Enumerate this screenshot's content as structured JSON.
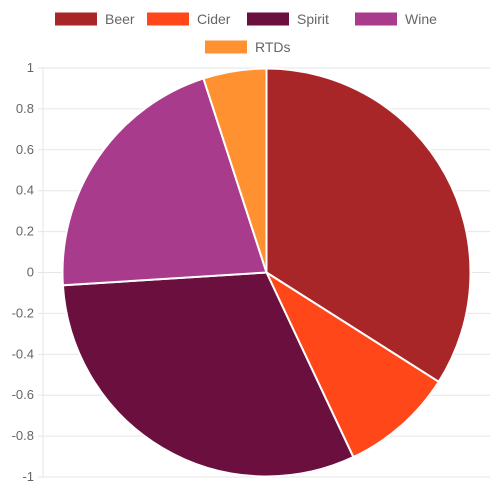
{
  "chart_data": {
    "type": "pie",
    "labels": [
      "Beer",
      "Cider",
      "Spirit",
      "Wine",
      "RTDs"
    ],
    "values": [
      34,
      9,
      31,
      21,
      5
    ],
    "colors": [
      "#a82528",
      "#ff471a",
      "#6b0f3f",
      "#a93b8c",
      "#ff9130"
    ],
    "legend_position": "top",
    "y_axis": {
      "ticks": [
        "1",
        "0.8",
        "0.6",
        "0.4",
        "0.2",
        "0",
        "-0.2",
        "-0.4",
        "-0.6",
        "-0.8",
        "-1"
      ]
    },
    "grid": true
  }
}
